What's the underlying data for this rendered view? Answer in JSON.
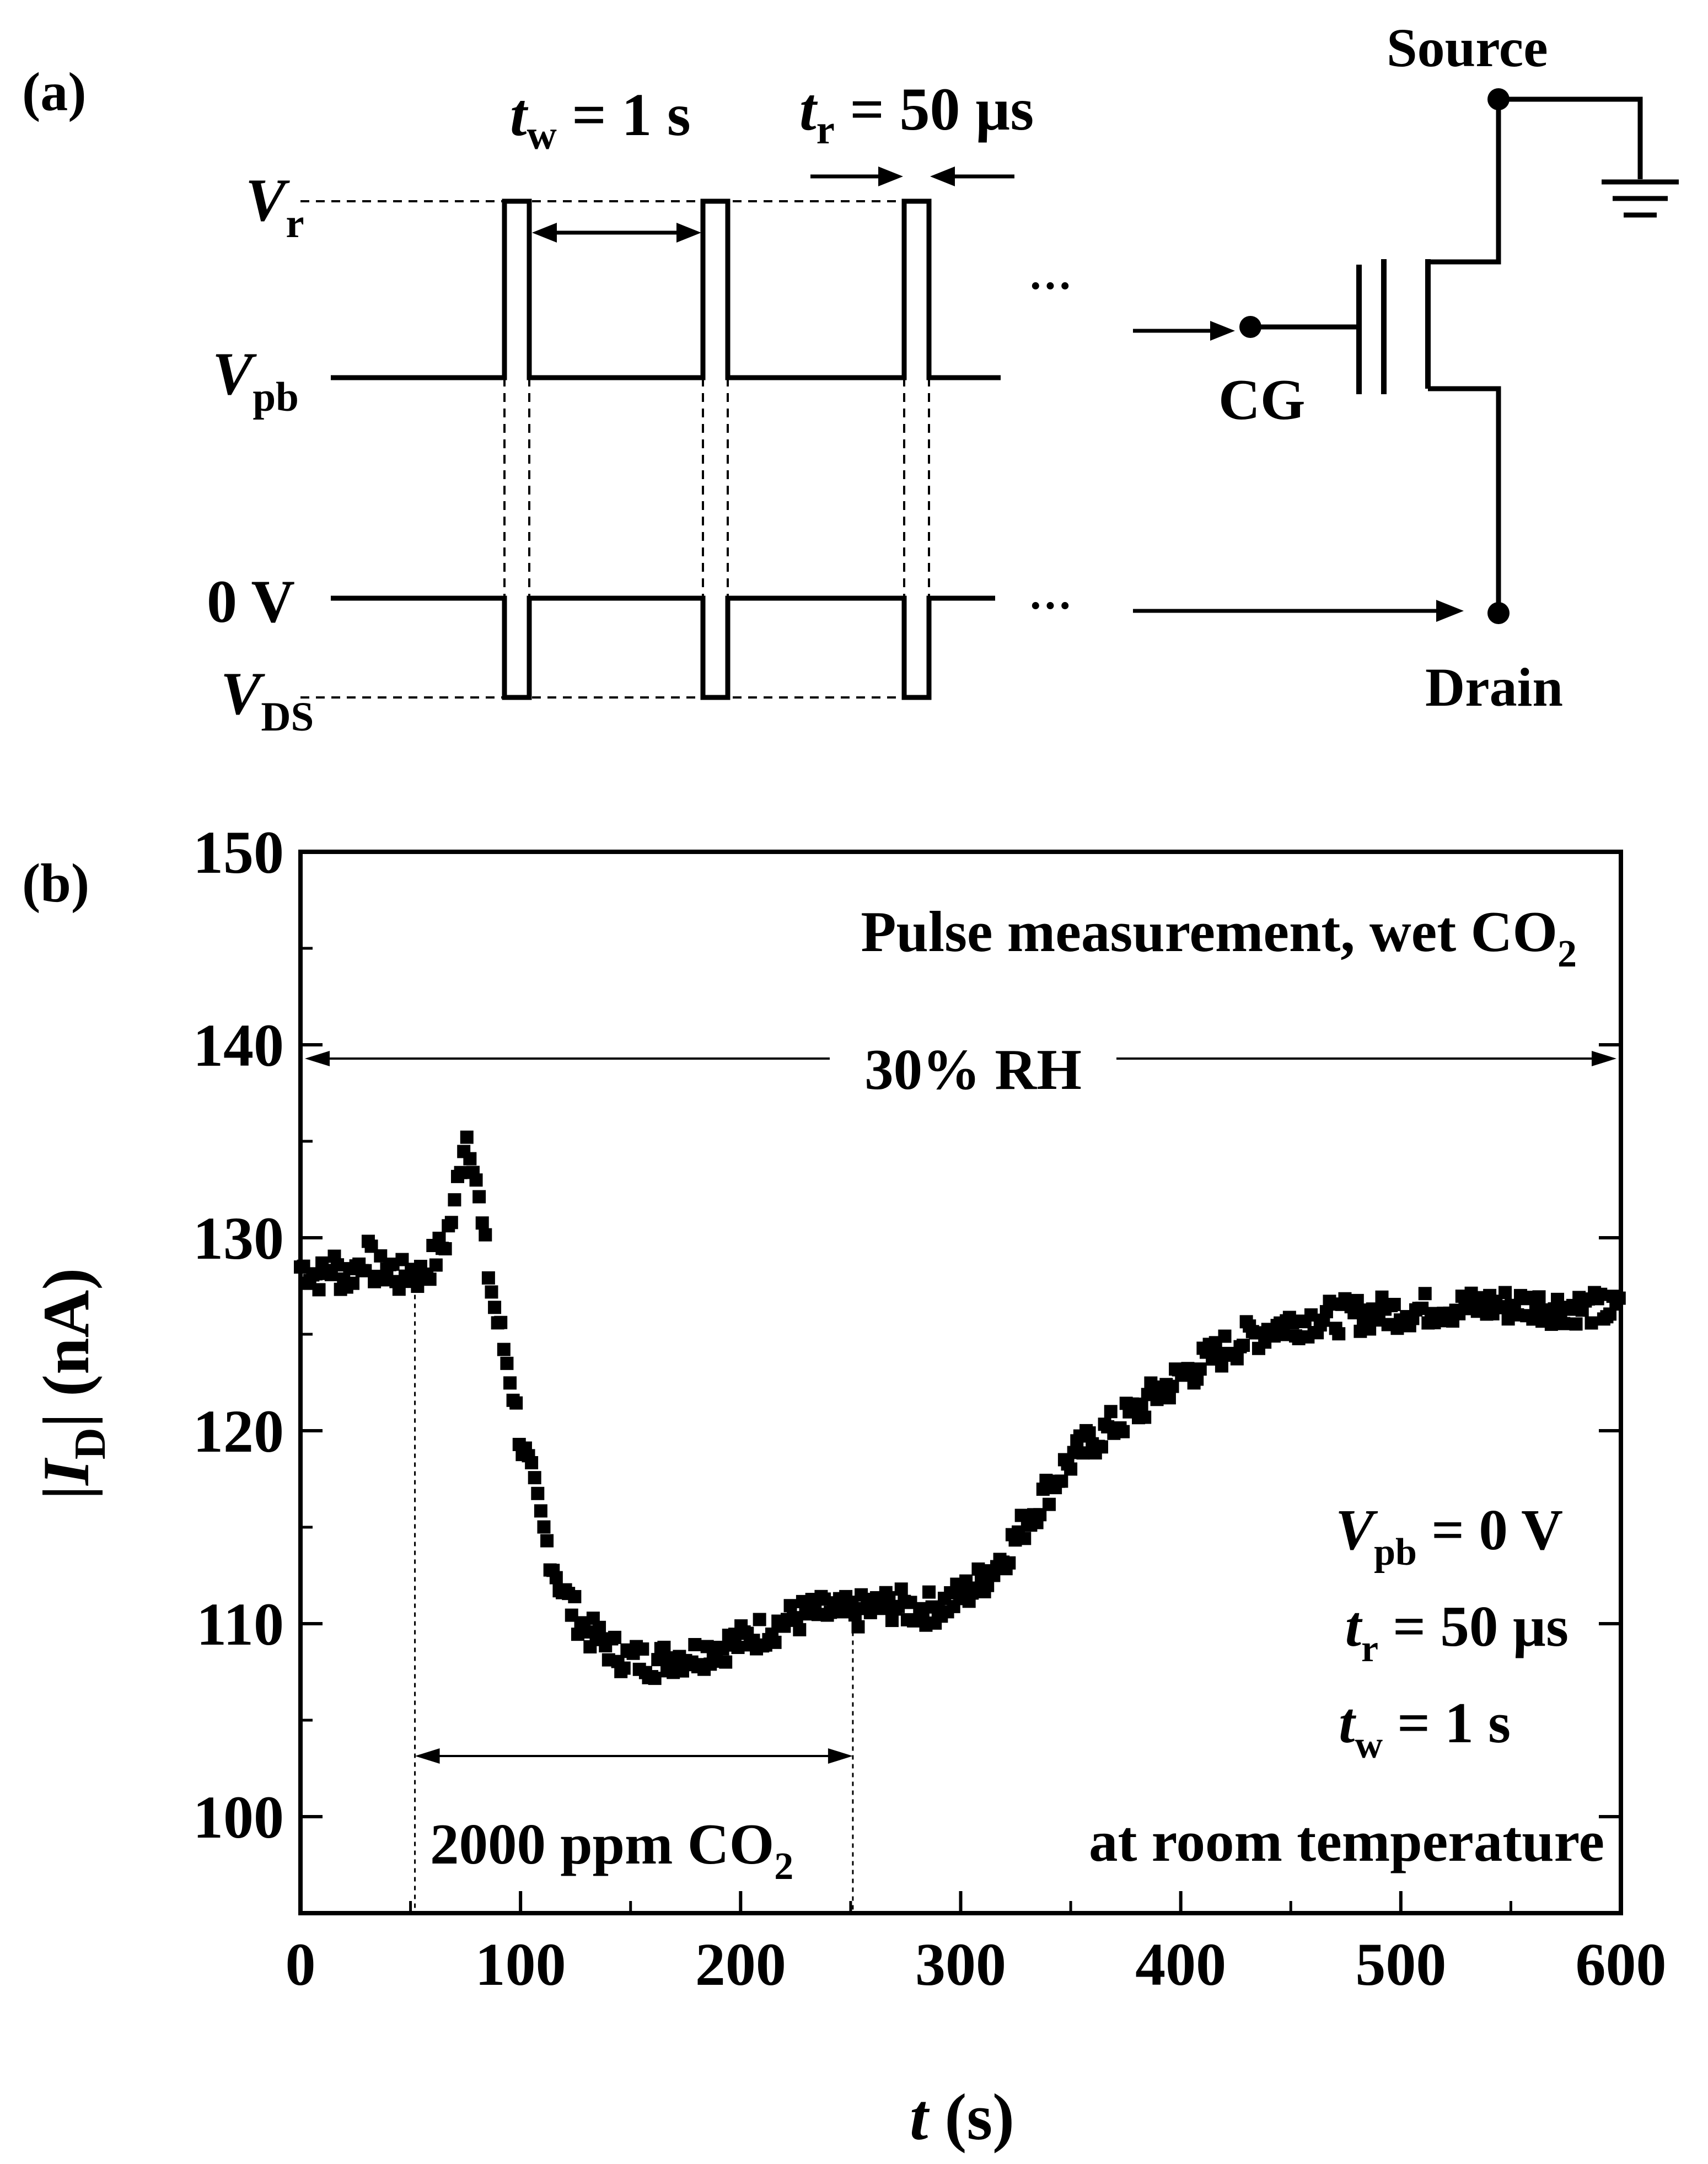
{
  "panel_a": {
    "label": "(a)",
    "tw_label": {
      "sym": "t",
      "sub": "w",
      "rest": " = 1 s"
    },
    "tr_label": {
      "sym": "t",
      "sub": "r",
      "rest": " = 50 µs"
    },
    "vr_label": {
      "sym": "V",
      "sub": "r"
    },
    "vpb_label": {
      "sym": "V",
      "sub": "pb"
    },
    "zero_label": "0 V",
    "vds_label": {
      "sym": "V",
      "sub": "DS"
    },
    "ellipsis": "···",
    "source_label": "Source",
    "cg_label": "CG",
    "drain_label": "Drain"
  },
  "panel_b": {
    "label": "(b)",
    "annotation_title": {
      "main": "Pulse measurement, wet CO",
      "sub": "2"
    },
    "rh_label": "30% RH",
    "co2_label": {
      "main": "2000 ppm CO",
      "sub": "2"
    },
    "conditions": {
      "vpb": {
        "sym": "V",
        "sub": "pb",
        "rest": " = 0 V"
      },
      "tr": {
        "sym": "t",
        "sub": "r",
        "rest": " = 50 µs"
      },
      "tw": {
        "sym": "t",
        "sub": "w",
        "rest": " = 1 s"
      },
      "temp": "at room temperature"
    },
    "ylabel": {
      "pre": "|",
      "sym": "I",
      "sub": "D",
      "post": "| (nA)"
    },
    "xlabel": {
      "sym": "t",
      "rest": " (s)"
    }
  },
  "chart_data": {
    "type": "scatter",
    "marker": "square",
    "color": "#000000",
    "xlim": [
      0,
      600
    ],
    "ylim": [
      95,
      150
    ],
    "xticks": [
      0,
      100,
      200,
      300,
      400,
      500,
      600
    ],
    "yticks": [
      100,
      110,
      120,
      130,
      140,
      150
    ],
    "grid": false,
    "gas_on": 52,
    "gas_off": 251,
    "rh_span": [
      0,
      600
    ],
    "series": [
      {
        "x": [
          0,
          5,
          10,
          15,
          20,
          25,
          30,
          35,
          40,
          45,
          50,
          55,
          60,
          65,
          70,
          72,
          75,
          78,
          80,
          82,
          85,
          88,
          90,
          93,
          96,
          100,
          105,
          110,
          115,
          120,
          125,
          130,
          135,
          140,
          145,
          150,
          160,
          170,
          180,
          190,
          200,
          210,
          220,
          230,
          240,
          250,
          260,
          270,
          280,
          290,
          300,
          310,
          320,
          330,
          340,
          350,
          360,
          370,
          380,
          390,
          400,
          410,
          420,
          430,
          440,
          450,
          460,
          470,
          480,
          490,
          500,
          510,
          520,
          530,
          540,
          550,
          560,
          570,
          580,
          590,
          600
        ],
        "y": [
          128.5,
          128.2,
          128.0,
          128.6,
          127.8,
          128.4,
          129.2,
          128.1,
          128.6,
          127.9,
          128.3,
          128.0,
          128.8,
          129.6,
          131.5,
          133.5,
          135.5,
          134.5,
          133.0,
          131.0,
          128.5,
          126.5,
          125.5,
          124.0,
          122.5,
          119.5,
          117.5,
          115.0,
          113.0,
          111.5,
          110.5,
          109.7,
          109.2,
          108.8,
          108.4,
          108.2,
          108.0,
          108.3,
          108.4,
          108.8,
          109.1,
          109.6,
          110.1,
          110.5,
          110.6,
          110.5,
          110.8,
          111.0,
          110.7,
          110.9,
          111.4,
          112.3,
          113.6,
          115.3,
          117.0,
          118.5,
          119.5,
          120.3,
          121.0,
          122.0,
          122.8,
          123.5,
          124.2,
          124.8,
          125.3,
          125.6,
          125.8,
          125.9,
          126.0,
          126.1,
          126.2,
          126.3,
          126.4,
          126.4,
          126.5,
          126.5,
          126.5,
          126.4,
          126.4,
          126.3,
          126.2
        ]
      }
    ]
  }
}
